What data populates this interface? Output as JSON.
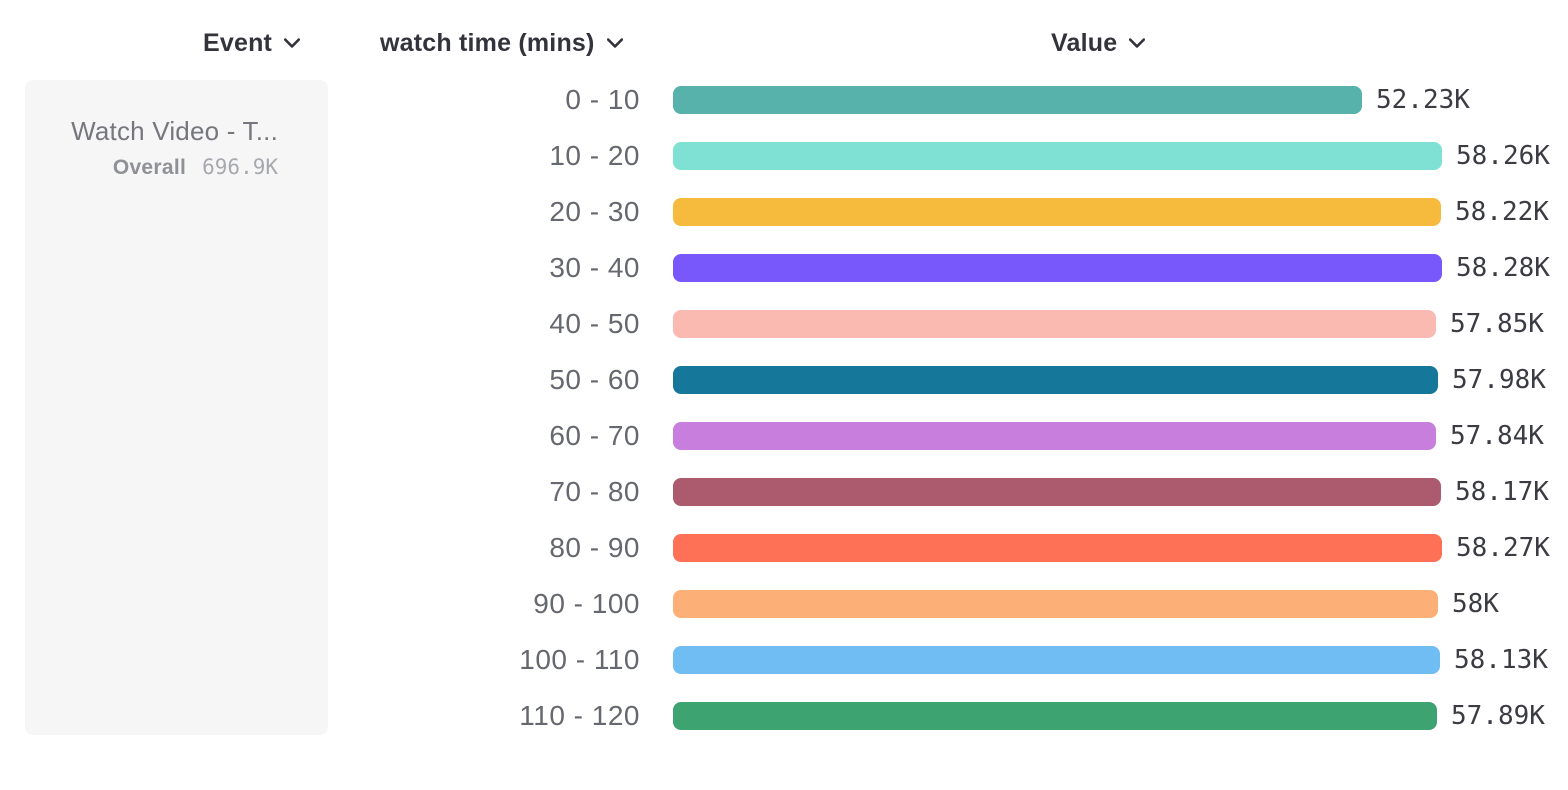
{
  "columns": {
    "event": {
      "label": "Event"
    },
    "breakdown": {
      "label": "watch time (mins)"
    },
    "value": {
      "label": "Value"
    }
  },
  "legend": {
    "event_name": "Watch Video - T...",
    "overall_label": "Overall",
    "overall_value": "696.9K"
  },
  "colors": {
    "page_bg": "#ffffff",
    "card_bg": "#f6f6f7",
    "header_text": "#32333b",
    "category_text": "#66686f",
    "value_text": "#3b3c43"
  },
  "chart_data": {
    "type": "bar",
    "orientation": "horizontal",
    "title": "",
    "xlabel": "Value",
    "ylabel": "watch time (mins)",
    "series_event": "Watch Video - T...",
    "categories": [
      "0 - 10",
      "10 - 20",
      "20 - 30",
      "30 - 40",
      "40 - 50",
      "50 - 60",
      "60 - 70",
      "70 - 80",
      "80 - 90",
      "90 - 100",
      "100 - 110",
      "110 - 120"
    ],
    "values": [
      52230,
      58260,
      58220,
      58280,
      57850,
      57980,
      57840,
      58170,
      58270,
      58000,
      58130,
      57890
    ],
    "value_labels": [
      "52.23K",
      "58.26K",
      "58.22K",
      "58.28K",
      "57.85K",
      "57.98K",
      "57.84K",
      "58.17K",
      "58.27K",
      "58K",
      "58.13K",
      "57.89K"
    ],
    "bar_colors": [
      "#57B2AC",
      "#7FE0D4",
      "#F6BA3D",
      "#7857FB",
      "#FABAB2",
      "#15789B",
      "#C77EDD",
      "#AC5A6E",
      "#FE7156",
      "#FCAF76",
      "#70BDF4",
      "#3DA371"
    ],
    "overall_total": "696.9K",
    "xlim": [
      0,
      58280
    ],
    "grid": false,
    "legend_position": "left",
    "value_label_position": "end-of-bar"
  }
}
